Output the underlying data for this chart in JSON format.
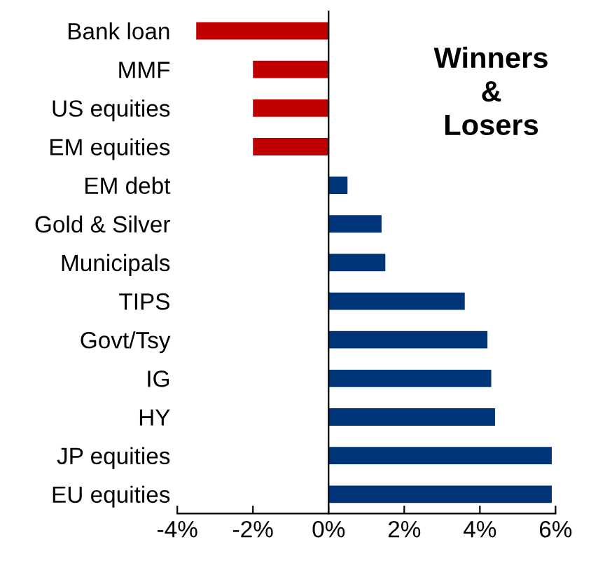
{
  "chart_data": {
    "type": "bar",
    "orientation": "horizontal",
    "categories": [
      "Bank loan",
      "MMF",
      "US equities",
      "EM equities",
      "EM debt",
      "Gold & Silver",
      "Municipals",
      "TIPS",
      "Govt/Tsy",
      "IG",
      "HY",
      "JP equities",
      "EU equities"
    ],
    "values": [
      -3.5,
      -2.0,
      -2.0,
      -2.0,
      0.5,
      1.4,
      1.5,
      3.6,
      4.2,
      4.3,
      4.4,
      5.9,
      5.9
    ],
    "colors": [
      "#c00000",
      "#c00000",
      "#c00000",
      "#c00000",
      "#003478",
      "#003478",
      "#003478",
      "#003478",
      "#003478",
      "#003478",
      "#003478",
      "#003478",
      "#003478"
    ],
    "xlim": [
      -4,
      6
    ],
    "xticks": [
      {
        "value": -4,
        "label": "-4%"
      },
      {
        "value": -2,
        "label": "-2%"
      },
      {
        "value": 0,
        "label": "0%"
      },
      {
        "value": 2,
        "label": "2%"
      },
      {
        "value": 4,
        "label": "4%"
      },
      {
        "value": 6,
        "label": "6%"
      }
    ],
    "annotations": [
      "Winners\n&\nLosers"
    ],
    "legend": false
  }
}
